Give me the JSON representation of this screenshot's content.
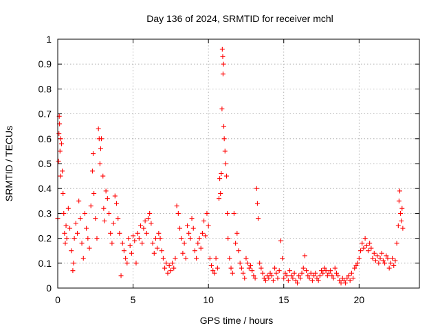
{
  "chart_data": {
    "type": "scatter",
    "title": "Day 136 of 2024, SRMTID for receiver mchl",
    "xlabel": "GPS time / hours",
    "ylabel": "SRMTID / TECUs",
    "xlim": [
      0,
      24
    ],
    "ylim": [
      0,
      1
    ],
    "x_ticks": [
      0,
      5,
      10,
      15,
      20
    ],
    "x_tick_labels": [
      "0",
      "5",
      "10",
      "15",
      "20"
    ],
    "y_ticks": [
      0,
      0.1,
      0.2,
      0.3,
      0.4,
      0.5,
      0.6,
      0.7,
      0.8,
      0.9,
      1
    ],
    "y_tick_labels": [
      "0",
      "0.1",
      "0.2",
      "0.3",
      "0.4",
      "0.5",
      "0.6",
      "0.7",
      "0.8",
      "0.9",
      "1"
    ],
    "grid": true,
    "marker": "+",
    "series": [
      {
        "name": "SRMTID",
        "color": "#ff0000",
        "points": [
          [
            0.0,
            0.28
          ],
          [
            0.05,
            0.51
          ],
          [
            0.08,
            0.62
          ],
          [
            0.1,
            0.69
          ],
          [
            0.12,
            0.66
          ],
          [
            0.15,
            0.55
          ],
          [
            0.18,
            0.45
          ],
          [
            0.2,
            0.6
          ],
          [
            0.25,
            0.58
          ],
          [
            0.3,
            0.47
          ],
          [
            0.35,
            0.38
          ],
          [
            0.4,
            0.3
          ],
          [
            0.45,
            0.22
          ],
          [
            0.5,
            0.18
          ],
          [
            0.55,
            0.25
          ],
          [
            0.6,
            0.2
          ],
          [
            0.7,
            0.32
          ],
          [
            0.8,
            0.24
          ],
          [
            0.9,
            0.15
          ],
          [
            1.0,
            0.07
          ],
          [
            1.05,
            0.1
          ],
          [
            1.1,
            0.2
          ],
          [
            1.2,
            0.26
          ],
          [
            1.3,
            0.22
          ],
          [
            1.4,
            0.35
          ],
          [
            1.5,
            0.28
          ],
          [
            1.6,
            0.18
          ],
          [
            1.7,
            0.12
          ],
          [
            1.8,
            0.3
          ],
          [
            1.9,
            0.24
          ],
          [
            2.0,
            0.2
          ],
          [
            2.1,
            0.16
          ],
          [
            2.2,
            0.33
          ],
          [
            2.3,
            0.47
          ],
          [
            2.35,
            0.54
          ],
          [
            2.4,
            0.38
          ],
          [
            2.5,
            0.28
          ],
          [
            2.6,
            0.2
          ],
          [
            2.7,
            0.64
          ],
          [
            2.75,
            0.6
          ],
          [
            2.8,
            0.5
          ],
          [
            2.85,
            0.56
          ],
          [
            2.9,
            0.6
          ],
          [
            3.0,
            0.45
          ],
          [
            3.05,
            0.32
          ],
          [
            3.1,
            0.27
          ],
          [
            3.2,
            0.39
          ],
          [
            3.3,
            0.36
          ],
          [
            3.4,
            0.3
          ],
          [
            3.5,
            0.22
          ],
          [
            3.6,
            0.18
          ],
          [
            3.7,
            0.26
          ],
          [
            3.8,
            0.37
          ],
          [
            3.9,
            0.34
          ],
          [
            4.0,
            0.28
          ],
          [
            4.1,
            0.22
          ],
          [
            4.2,
            0.05
          ],
          [
            4.3,
            0.18
          ],
          [
            4.4,
            0.15
          ],
          [
            4.5,
            0.12
          ],
          [
            4.6,
            0.1
          ],
          [
            4.7,
            0.2
          ],
          [
            4.8,
            0.17
          ],
          [
            4.9,
            0.14
          ],
          [
            5.0,
            0.21
          ],
          [
            5.1,
            0.19
          ],
          [
            5.2,
            0.1
          ],
          [
            5.3,
            0.22
          ],
          [
            5.4,
            0.2
          ],
          [
            5.5,
            0.25
          ],
          [
            5.6,
            0.18
          ],
          [
            5.7,
            0.24
          ],
          [
            5.8,
            0.27
          ],
          [
            5.9,
            0.22
          ],
          [
            6.0,
            0.28
          ],
          [
            6.1,
            0.3
          ],
          [
            6.2,
            0.26
          ],
          [
            6.3,
            0.18
          ],
          [
            6.4,
            0.14
          ],
          [
            6.5,
            0.2
          ],
          [
            6.6,
            0.16
          ],
          [
            6.7,
            0.22
          ],
          [
            6.8,
            0.2
          ],
          [
            6.9,
            0.15
          ],
          [
            7.0,
            0.12
          ],
          [
            7.1,
            0.08
          ],
          [
            7.2,
            0.1
          ],
          [
            7.3,
            0.06
          ],
          [
            7.4,
            0.09
          ],
          [
            7.5,
            0.07
          ],
          [
            7.6,
            0.1
          ],
          [
            7.7,
            0.08
          ],
          [
            7.8,
            0.12
          ],
          [
            7.9,
            0.33
          ],
          [
            8.0,
            0.3
          ],
          [
            8.1,
            0.24
          ],
          [
            8.2,
            0.2
          ],
          [
            8.3,
            0.14
          ],
          [
            8.4,
            0.18
          ],
          [
            8.5,
            0.12
          ],
          [
            8.6,
            0.25
          ],
          [
            8.7,
            0.22
          ],
          [
            8.8,
            0.2
          ],
          [
            8.9,
            0.28
          ],
          [
            9.0,
            0.24
          ],
          [
            9.1,
            0.15
          ],
          [
            9.2,
            0.12
          ],
          [
            9.3,
            0.18
          ],
          [
            9.4,
            0.2
          ],
          [
            9.5,
            0.16
          ],
          [
            9.6,
            0.22
          ],
          [
            9.7,
            0.27
          ],
          [
            9.8,
            0.21
          ],
          [
            9.9,
            0.3
          ],
          [
            10.0,
            0.25
          ],
          [
            10.1,
            0.12
          ],
          [
            10.2,
            0.09
          ],
          [
            10.3,
            0.07
          ],
          [
            10.4,
            0.06
          ],
          [
            10.5,
            0.12
          ],
          [
            10.6,
            0.08
          ],
          [
            10.7,
            0.36
          ],
          [
            10.75,
            0.44
          ],
          [
            10.8,
            0.38
          ],
          [
            10.85,
            0.46
          ],
          [
            10.9,
            0.72
          ],
          [
            10.92,
            0.96
          ],
          [
            10.95,
            0.93
          ],
          [
            10.97,
            0.86
          ],
          [
            11.0,
            0.9
          ],
          [
            11.02,
            0.65
          ],
          [
            11.05,
            0.6
          ],
          [
            11.1,
            0.55
          ],
          [
            11.15,
            0.5
          ],
          [
            11.2,
            0.45
          ],
          [
            11.25,
            0.3
          ],
          [
            11.3,
            0.2
          ],
          [
            11.4,
            0.12
          ],
          [
            11.5,
            0.08
          ],
          [
            11.6,
            0.06
          ],
          [
            11.7,
            0.3
          ],
          [
            11.8,
            0.18
          ],
          [
            11.9,
            0.22
          ],
          [
            12.0,
            0.15
          ],
          [
            12.1,
            0.1
          ],
          [
            12.2,
            0.08
          ],
          [
            12.3,
            0.06
          ],
          [
            12.4,
            0.04
          ],
          [
            12.5,
            0.12
          ],
          [
            12.6,
            0.1
          ],
          [
            12.7,
            0.08
          ],
          [
            12.8,
            0.09
          ],
          [
            12.9,
            0.07
          ],
          [
            13.0,
            0.05
          ],
          [
            13.1,
            0.04
          ],
          [
            13.2,
            0.4
          ],
          [
            13.25,
            0.34
          ],
          [
            13.3,
            0.28
          ],
          [
            13.4,
            0.1
          ],
          [
            13.5,
            0.08
          ],
          [
            13.6,
            0.06
          ],
          [
            13.7,
            0.04
          ],
          [
            13.8,
            0.03
          ],
          [
            13.9,
            0.05
          ],
          [
            14.0,
            0.04
          ],
          [
            14.1,
            0.06
          ],
          [
            14.2,
            0.05
          ],
          [
            14.3,
            0.03
          ],
          [
            14.4,
            0.08
          ],
          [
            14.5,
            0.06
          ],
          [
            14.6,
            0.04
          ],
          [
            14.7,
            0.07
          ],
          [
            14.8,
            0.19
          ],
          [
            14.9,
            0.12
          ],
          [
            15.0,
            0.04
          ],
          [
            15.1,
            0.06
          ],
          [
            15.2,
            0.05
          ],
          [
            15.3,
            0.03
          ],
          [
            15.4,
            0.07
          ],
          [
            15.5,
            0.05
          ],
          [
            15.6,
            0.04
          ],
          [
            15.7,
            0.06
          ],
          [
            15.8,
            0.03
          ],
          [
            15.9,
            0.02
          ],
          [
            16.0,
            0.05
          ],
          [
            16.1,
            0.04
          ],
          [
            16.2,
            0.06
          ],
          [
            16.3,
            0.08
          ],
          [
            16.4,
            0.13
          ],
          [
            16.5,
            0.07
          ],
          [
            16.6,
            0.05
          ],
          [
            16.7,
            0.04
          ],
          [
            16.8,
            0.06
          ],
          [
            16.9,
            0.03
          ],
          [
            17.0,
            0.05
          ],
          [
            17.1,
            0.06
          ],
          [
            17.2,
            0.04
          ],
          [
            17.3,
            0.03
          ],
          [
            17.4,
            0.05
          ],
          [
            17.5,
            0.07
          ],
          [
            17.6,
            0.06
          ],
          [
            17.7,
            0.08
          ],
          [
            17.8,
            0.07
          ],
          [
            17.9,
            0.05
          ],
          [
            18.0,
            0.06
          ],
          [
            18.1,
            0.07
          ],
          [
            18.2,
            0.05
          ],
          [
            18.3,
            0.04
          ],
          [
            18.4,
            0.08
          ],
          [
            18.5,
            0.06
          ],
          [
            18.6,
            0.05
          ],
          [
            18.7,
            0.03
          ],
          [
            18.8,
            0.02
          ],
          [
            18.9,
            0.04
          ],
          [
            19.0,
            0.03
          ],
          [
            19.1,
            0.02
          ],
          [
            19.2,
            0.04
          ],
          [
            19.3,
            0.05
          ],
          [
            19.4,
            0.03
          ],
          [
            19.5,
            0.06
          ],
          [
            19.6,
            0.04
          ],
          [
            19.7,
            0.08
          ],
          [
            19.8,
            0.09
          ],
          [
            19.9,
            0.1
          ],
          [
            20.0,
            0.12
          ],
          [
            20.1,
            0.15
          ],
          [
            20.2,
            0.18
          ],
          [
            20.3,
            0.16
          ],
          [
            20.4,
            0.2
          ],
          [
            20.5,
            0.17
          ],
          [
            20.6,
            0.15
          ],
          [
            20.7,
            0.18
          ],
          [
            20.8,
            0.16
          ],
          [
            20.9,
            0.12
          ],
          [
            21.0,
            0.14
          ],
          [
            21.1,
            0.11
          ],
          [
            21.2,
            0.13
          ],
          [
            21.3,
            0.1
          ],
          [
            21.4,
            0.12
          ],
          [
            21.5,
            0.14
          ],
          [
            21.6,
            0.11
          ],
          [
            21.7,
            0.1
          ],
          [
            21.8,
            0.13
          ],
          [
            21.9,
            0.12
          ],
          [
            22.0,
            0.08
          ],
          [
            22.1,
            0.1
          ],
          [
            22.2,
            0.12
          ],
          [
            22.3,
            0.09
          ],
          [
            22.4,
            0.11
          ],
          [
            22.5,
            0.18
          ],
          [
            22.6,
            0.25
          ],
          [
            22.65,
            0.35
          ],
          [
            22.7,
            0.39
          ],
          [
            22.75,
            0.3
          ],
          [
            22.8,
            0.27
          ],
          [
            22.85,
            0.32
          ],
          [
            22.9,
            0.24
          ]
        ]
      }
    ]
  }
}
